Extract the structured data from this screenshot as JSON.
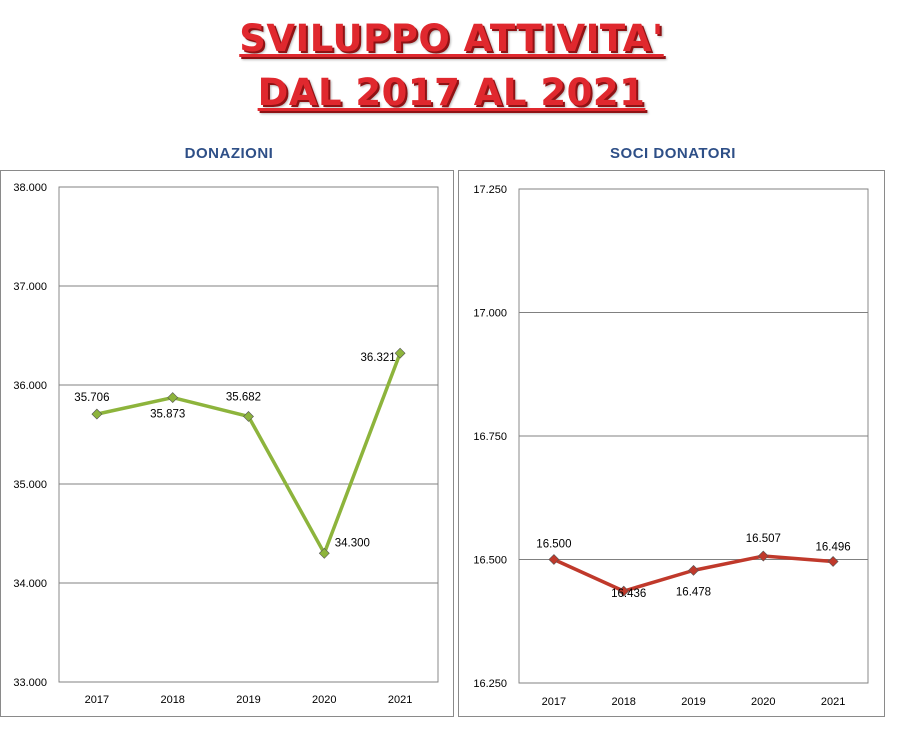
{
  "title": {
    "line1": "SVILUPPO ATTIVITA'",
    "line2": "DAL 2017 AL 2021"
  },
  "chart_data": [
    {
      "type": "line",
      "title": "DONAZIONI",
      "categories": [
        "2017",
        "2018",
        "2019",
        "2020",
        "2021"
      ],
      "values": [
        35706,
        35873,
        35682,
        34300,
        36321
      ],
      "data_labels": [
        "35.706",
        "35.873",
        "35.682",
        "34.300",
        "36.321"
      ],
      "y_ticks": [
        "33.000",
        "34.000",
        "35.000",
        "36.000",
        "37.000",
        "38.000"
      ],
      "ylim": [
        33000,
        38000
      ],
      "color": "#8db43c",
      "marker": "diamond",
      "grid": true
    },
    {
      "type": "line",
      "title": "SOCI DONATORI",
      "categories": [
        "2017",
        "2018",
        "2019",
        "2020",
        "2021"
      ],
      "values": [
        16500,
        16436,
        16478,
        16507,
        16496
      ],
      "data_labels": [
        "16.500",
        "16.436",
        "16.478",
        "16.507",
        "16.496"
      ],
      "y_ticks": [
        "16.250",
        "16.500",
        "16.750",
        "17.000",
        "17.250"
      ],
      "ylim": [
        16250,
        17250
      ],
      "color": "#c0392b",
      "marker": "diamond",
      "grid": true
    }
  ]
}
